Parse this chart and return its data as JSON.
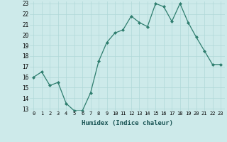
{
  "x": [
    0,
    1,
    2,
    3,
    4,
    5,
    6,
    7,
    8,
    9,
    10,
    11,
    12,
    13,
    14,
    15,
    16,
    17,
    18,
    19,
    20,
    21,
    22,
    23
  ],
  "y": [
    16.0,
    16.5,
    15.2,
    15.5,
    13.5,
    12.8,
    12.8,
    14.5,
    17.5,
    19.3,
    20.2,
    20.5,
    21.8,
    21.2,
    20.8,
    23.0,
    22.7,
    21.3,
    23.0,
    21.2,
    19.8,
    18.5,
    17.2,
    17.2
  ],
  "line_color": "#2e7d6e",
  "marker": "D",
  "marker_size": 2,
  "bg_color": "#cdeaea",
  "grid_color": "#b0d8d8",
  "xlabel": "Humidex (Indice chaleur)",
  "ylim": [
    13,
    23
  ],
  "xlim": [
    -0.5,
    23.5
  ],
  "yticks": [
    13,
    14,
    15,
    16,
    17,
    18,
    19,
    20,
    21,
    22,
    23
  ],
  "xticks": [
    0,
    1,
    2,
    3,
    4,
    5,
    6,
    7,
    8,
    9,
    10,
    11,
    12,
    13,
    14,
    15,
    16,
    17,
    18,
    19,
    20,
    21,
    22,
    23
  ],
  "xtick_labels": [
    "0",
    "1",
    "2",
    "3",
    "4",
    "5",
    "6",
    "7",
    "8",
    "9",
    "10",
    "11",
    "12",
    "13",
    "14",
    "15",
    "16",
    "17",
    "18",
    "19",
    "20",
    "21",
    "22",
    "23"
  ]
}
